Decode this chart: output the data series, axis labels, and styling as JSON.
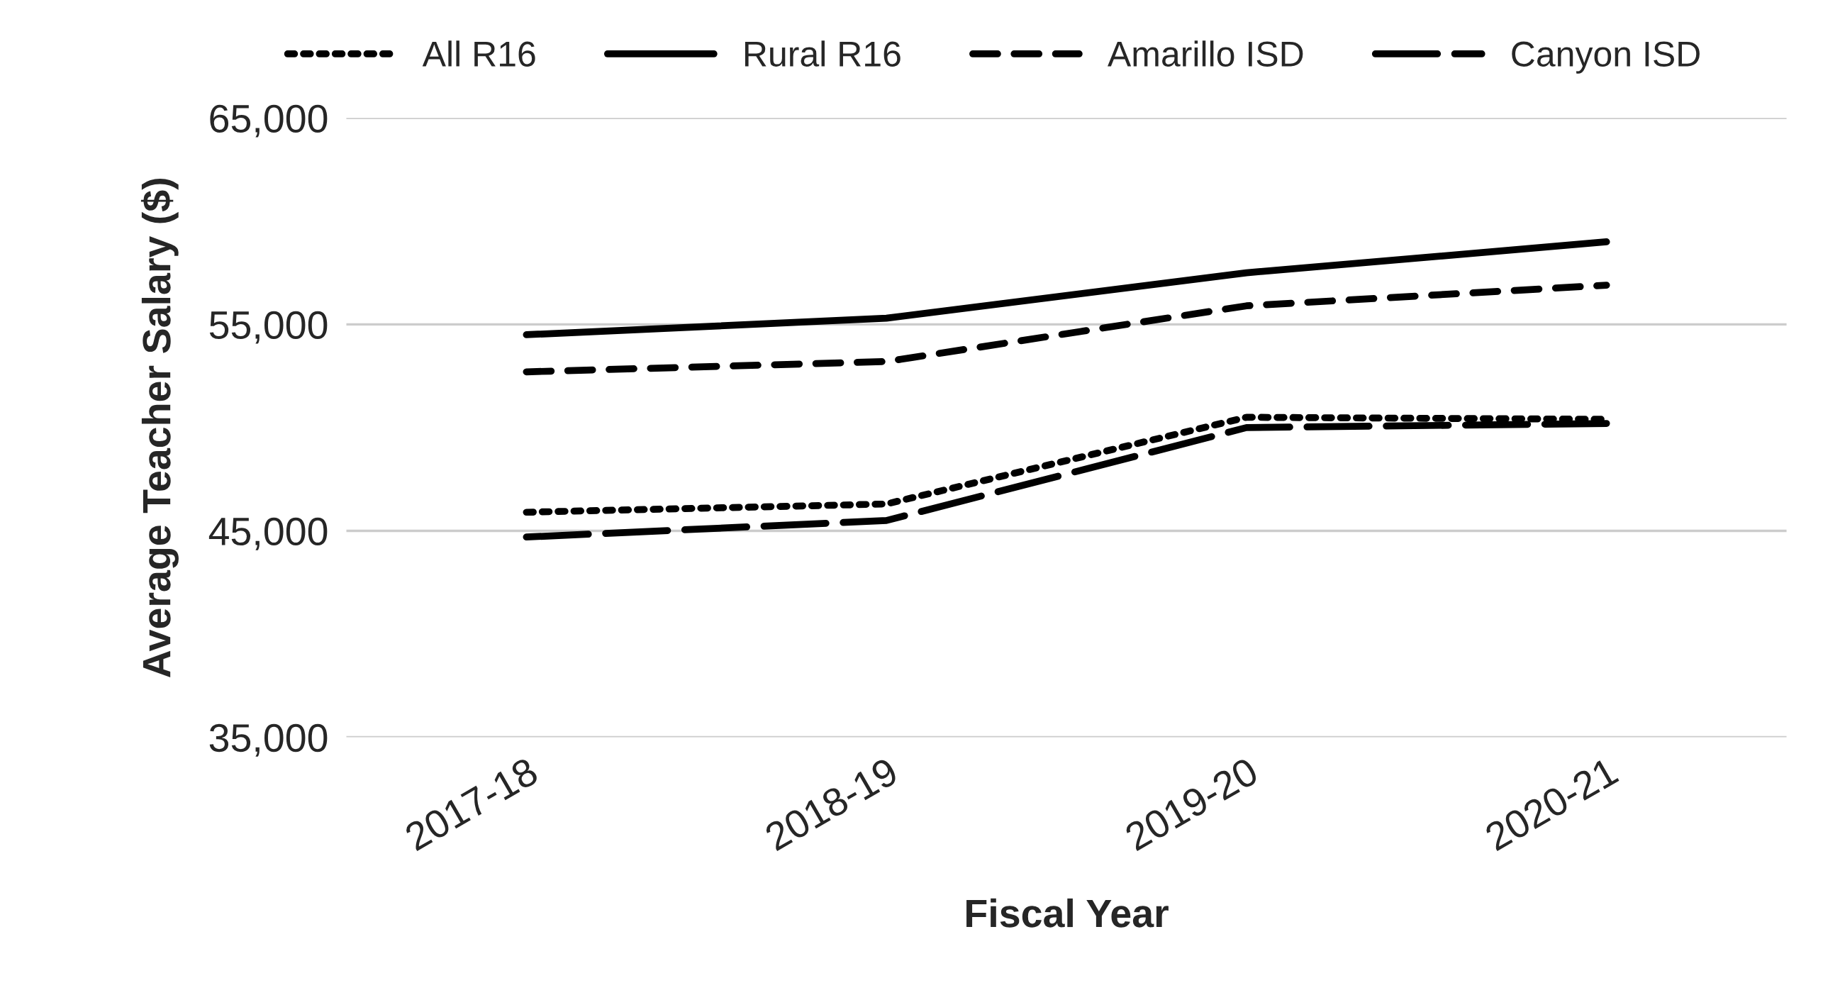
{
  "chart_data": {
    "type": "line",
    "xlabel": "Fiscal Year",
    "ylabel": "Average Teacher Salary ($)",
    "categories": [
      "2017-18",
      "2018-19",
      "2019-20",
      "2020-21"
    ],
    "series": [
      {
        "name": "All R16",
        "color": "#000000",
        "line_style": "dotted",
        "values": [
          45900,
          46300,
          50500,
          50400
        ]
      },
      {
        "name": "Rural R16",
        "color": "#000000",
        "line_style": "solid",
        "values": [
          54500,
          55300,
          57500,
          59000
        ]
      },
      {
        "name": "Amarillo ISD",
        "color": "#000000",
        "line_style": "dashed",
        "values": [
          52700,
          53200,
          55900,
          56900
        ]
      },
      {
        "name": "Canyon ISD",
        "color": "#000000",
        "line_style": "long dashed",
        "values": [
          44700,
          45500,
          50000,
          50200
        ]
      }
    ],
    "ylim": [
      35000,
      65000
    ],
    "yticks": [
      {
        "value": 35000,
        "label": "35,000"
      },
      {
        "value": 45000,
        "label": "45,000"
      },
      {
        "value": 55000,
        "label": "55,000"
      },
      {
        "value": 65000,
        "label": "65,000"
      }
    ],
    "grid": "y",
    "legend": "top",
    "marker": "none"
  }
}
